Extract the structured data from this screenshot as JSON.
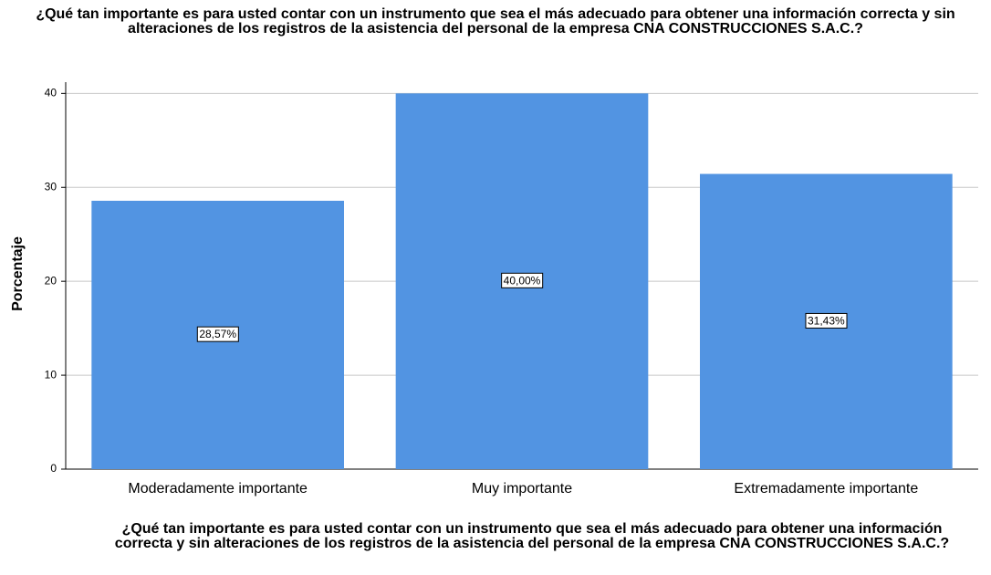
{
  "chart_data": {
    "type": "bar",
    "title": "¿Qué tan importante es para usted contar con un instrumento que sea el más adecuado para obtener una información correcta y sin alteraciones de los registros de la asistencia del personal de la empresa CNA CONSTRUCCIONES S.A.C.?",
    "x_label": "¿Qué tan importante es para usted contar con un instrumento que sea el más adecuado para obtener una información correcta y sin alteraciones de los registros de la asistencia del personal de la empresa CNA CONSTRUCCIONES S.A.C.?",
    "y_label": "Porcentaje",
    "categories": [
      "Moderadamente importante",
      "Muy importante",
      "Extremadamente importante"
    ],
    "values": [
      28.57,
      40.0,
      31.43
    ],
    "value_labels": [
      "28,57%",
      "40,00%",
      "31,43%"
    ],
    "color": "#5294e2",
    "ylim": [
      0,
      41.2
    ],
    "yticks": [
      0,
      10,
      20,
      30,
      40
    ],
    "grid": true
  }
}
